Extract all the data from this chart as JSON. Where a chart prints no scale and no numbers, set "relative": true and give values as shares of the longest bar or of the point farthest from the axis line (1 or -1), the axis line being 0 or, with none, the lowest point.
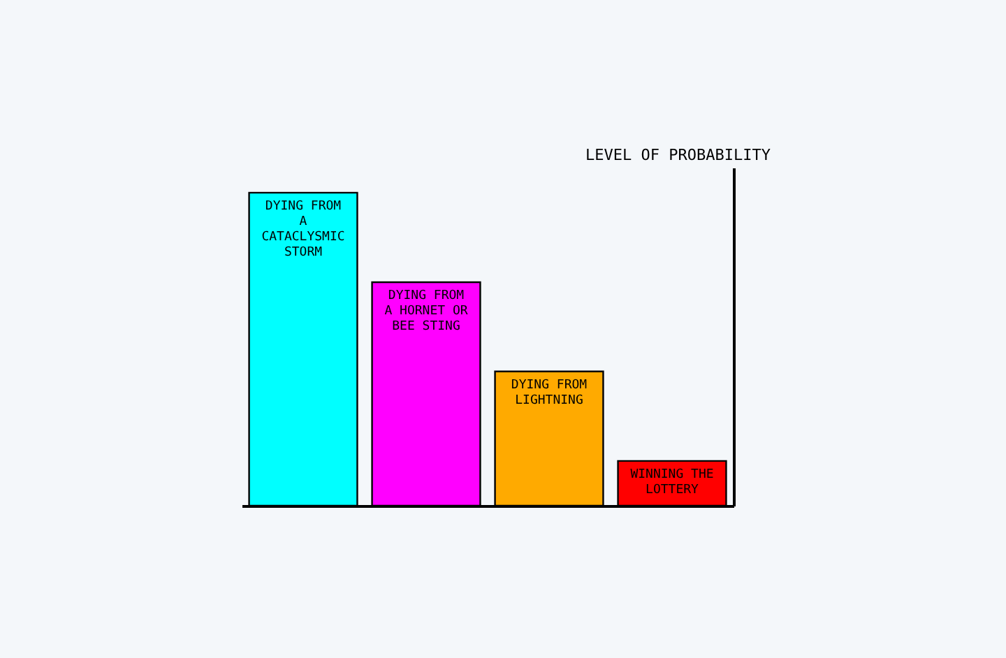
{
  "chart_data": {
    "type": "bar",
    "relative": true,
    "ylabel": "LEVEL OF PROBABILITY",
    "categories": [
      "DYING FROM A CATACLYSMIC STORM",
      "DYING FROM A HORNET OR BEE STING",
      "DYING FROM LIGHTNING",
      "WINNING THE LOTTERY"
    ],
    "values": [
      1,
      0.714,
      0.429,
      0.143
    ],
    "colors": [
      "#00ffff",
      "#ff00ff",
      "#ffaa00",
      "#ff0000"
    ]
  }
}
